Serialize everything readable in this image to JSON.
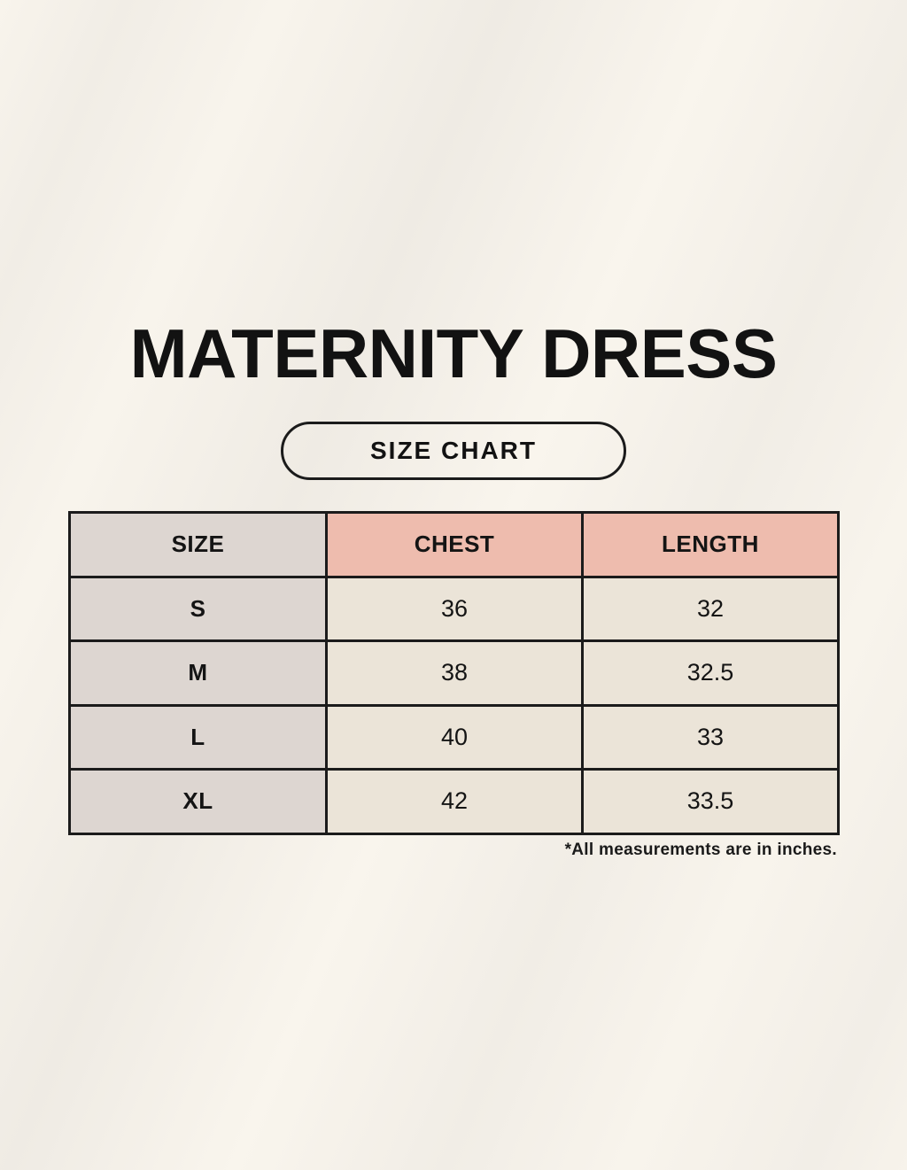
{
  "page": {
    "title": "MATERNITY DRESS",
    "badge_label": "SIZE CHART",
    "footnote": "*All measurements are in inches."
  },
  "size_table": {
    "columns": [
      "SIZE",
      "CHEST",
      "LENGTH"
    ],
    "rows": [
      [
        "S",
        "36",
        "32"
      ],
      [
        "M",
        "38",
        "32.5"
      ],
      [
        "L",
        "40",
        "33"
      ],
      [
        "XL",
        "42",
        "33.5"
      ]
    ]
  },
  "colors": {
    "page_background": "#f7f3ea",
    "table_border": "#1b1b1b",
    "size_column_background": "#ddd6d1",
    "header_accent_background": "#eebcae",
    "value_cell_background": "#ebe4d8",
    "text": "#121212"
  }
}
